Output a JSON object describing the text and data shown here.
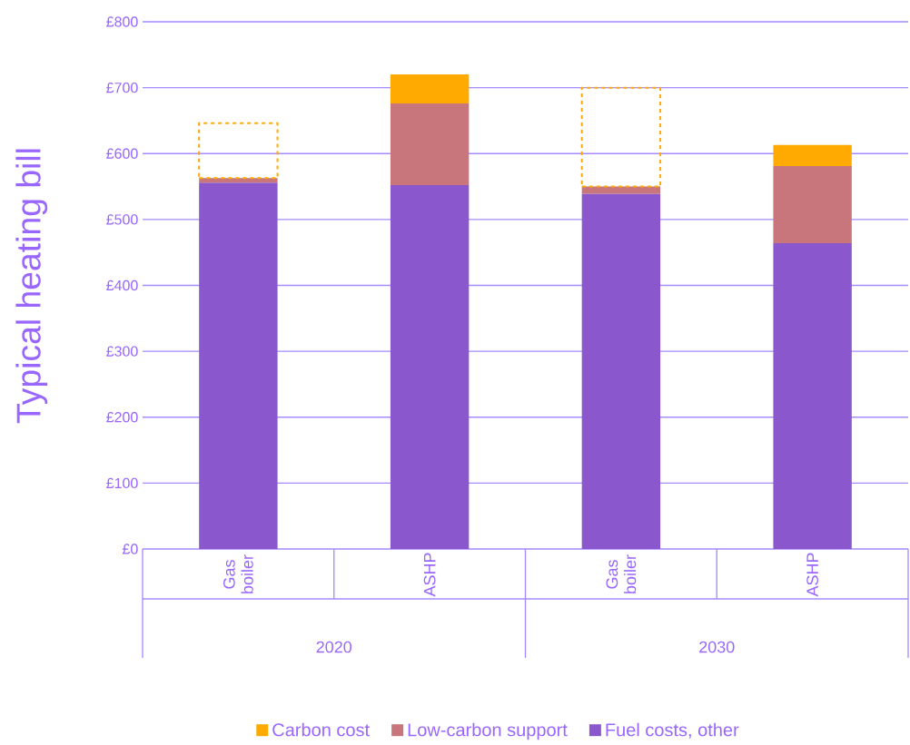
{
  "chart_data": {
    "type": "bar",
    "stacked": true,
    "ylabel": "Typical heating bill",
    "categories": [
      "Gas boiler",
      "ASHP",
      "Gas boiler",
      "ASHP"
    ],
    "annotations": [
      "2020",
      "2030"
    ],
    "series": [
      {
        "name": "Fuel costs, other",
        "color": "#8a58cc",
        "values": [
          556,
          552,
          539,
          464
        ]
      },
      {
        "name": "Low-carbon support",
        "color": "#c8757c",
        "values": [
          7,
          124,
          11,
          117
        ]
      },
      {
        "name": "Carbon cost",
        "color": "#ffaa00",
        "values": [
          null,
          44,
          null,
          32
        ]
      },
      {
        "color": "#ffaa00",
        "line_style": "dashed",
        "values": [
          83,
          null,
          150,
          null
        ]
      }
    ],
    "ylim": [
      0,
      800
    ],
    "yticks": [
      {
        "value": 0,
        "label": "£0"
      },
      {
        "value": 100,
        "label": "£100"
      },
      {
        "value": 200,
        "label": "£200"
      },
      {
        "value": 300,
        "label": "£300"
      },
      {
        "value": 400,
        "label": "£400"
      },
      {
        "value": 500,
        "label": "£500"
      },
      {
        "value": 600,
        "label": "£600"
      },
      {
        "value": 700,
        "label": "£700"
      },
      {
        "value": 800,
        "label": "£800"
      }
    ],
    "grid": "y",
    "legend": "bottom"
  }
}
